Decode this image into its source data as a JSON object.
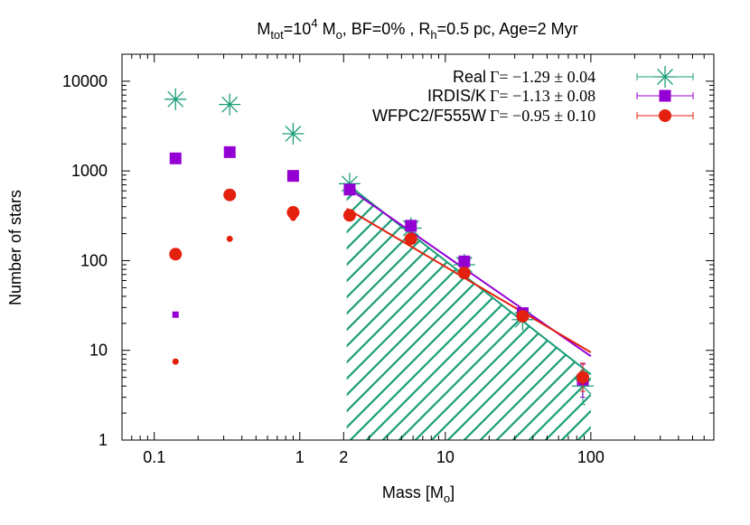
{
  "chart_data": {
    "type": "scatter",
    "title": {
      "parts": [
        "M",
        "tot",
        "=10",
        "4",
        " M",
        "o",
        ", BF=0% , R",
        "h",
        "=0.5 pc, Age=2 Myr"
      ]
    },
    "xlabel": {
      "main": "Mass [M",
      "sub": "o",
      "end": "]"
    },
    "ylabel": "Number of stars",
    "x_scale": "log",
    "y_scale": "log",
    "xlim": [
      0.06,
      700
    ],
    "ylim": [
      1,
      20000
    ],
    "x_ticks": [
      {
        "value": 0.1,
        "label": "0.1"
      },
      {
        "value": 1,
        "label": "1"
      },
      {
        "value": 2,
        "label": "2"
      },
      {
        "value": 10,
        "label": "10"
      },
      {
        "value": 100,
        "label": "100"
      }
    ],
    "y_ticks": [
      {
        "value": 1,
        "label": "1"
      },
      {
        "value": 10,
        "label": "10"
      },
      {
        "value": 100,
        "label": "100"
      },
      {
        "value": 1000,
        "label": "1000"
      },
      {
        "value": 10000,
        "label": "10000"
      }
    ],
    "legend_position": "top-right",
    "hatched_region": {
      "x_min": 2.1,
      "x_max": 100,
      "series": "Real",
      "color": "#1a9e77"
    },
    "series": [
      {
        "name": "Real",
        "stat": "Γ= −1.29 ± 0.04",
        "color": "#1a9e77",
        "marker": "asterisk",
        "points": [
          {
            "x": 0.14,
            "y": 6300
          },
          {
            "x": 0.33,
            "y": 5500
          },
          {
            "x": 0.9,
            "y": 2600
          },
          {
            "x": 2.2,
            "y": 720
          },
          {
            "x": 5.8,
            "y": 230
          },
          {
            "x": 13.5,
            "y": 90
          },
          {
            "x": 34,
            "y": 22
          },
          {
            "x": 88,
            "y": 4,
            "err": [
              2.5,
              6
            ]
          }
        ],
        "small_points": [],
        "fit": {
          "x": [
            2.1,
            100
          ],
          "y": [
            720,
            5.4
          ]
        }
      },
      {
        "name": "IRDIS/K",
        "stat": "Γ= −1.13 ± 0.08",
        "color": "#9400d3",
        "marker": "square",
        "points": [
          {
            "x": 0.14,
            "y": 1380
          },
          {
            "x": 0.33,
            "y": 1620
          },
          {
            "x": 0.9,
            "y": 880
          },
          {
            "x": 2.2,
            "y": 620
          },
          {
            "x": 5.8,
            "y": 245
          },
          {
            "x": 13.5,
            "y": 98
          },
          {
            "x": 34,
            "y": 26
          },
          {
            "x": 88,
            "y": 4.7,
            "err": [
              3,
              7
            ]
          }
        ],
        "small_points": [
          {
            "x": 0.14,
            "y": 25
          }
        ],
        "fit": {
          "x": [
            2.1,
            100
          ],
          "y": [
            660,
            8.6
          ]
        }
      },
      {
        "name": "WFPC2/F555W",
        "stat": "Γ= −0.95 ± 0.10",
        "color": "#e3210e",
        "marker": "circle",
        "points": [
          {
            "x": 0.14,
            "y": 118
          },
          {
            "x": 0.33,
            "y": 540
          },
          {
            "x": 0.9,
            "y": 345
          },
          {
            "x": 2.2,
            "y": 320
          },
          {
            "x": 5.8,
            "y": 175
          },
          {
            "x": 13.5,
            "y": 73
          },
          {
            "x": 34,
            "y": 24
          },
          {
            "x": 88,
            "y": 5,
            "err": [
              3.5,
              7.2
            ]
          }
        ],
        "small_points": [
          {
            "x": 0.14,
            "y": 7.5
          },
          {
            "x": 0.33,
            "y": 175
          },
          {
            "x": 0.9,
            "y": 300
          }
        ],
        "fit": {
          "x": [
            2.1,
            100
          ],
          "y": [
            380,
            9.5
          ]
        }
      }
    ]
  }
}
